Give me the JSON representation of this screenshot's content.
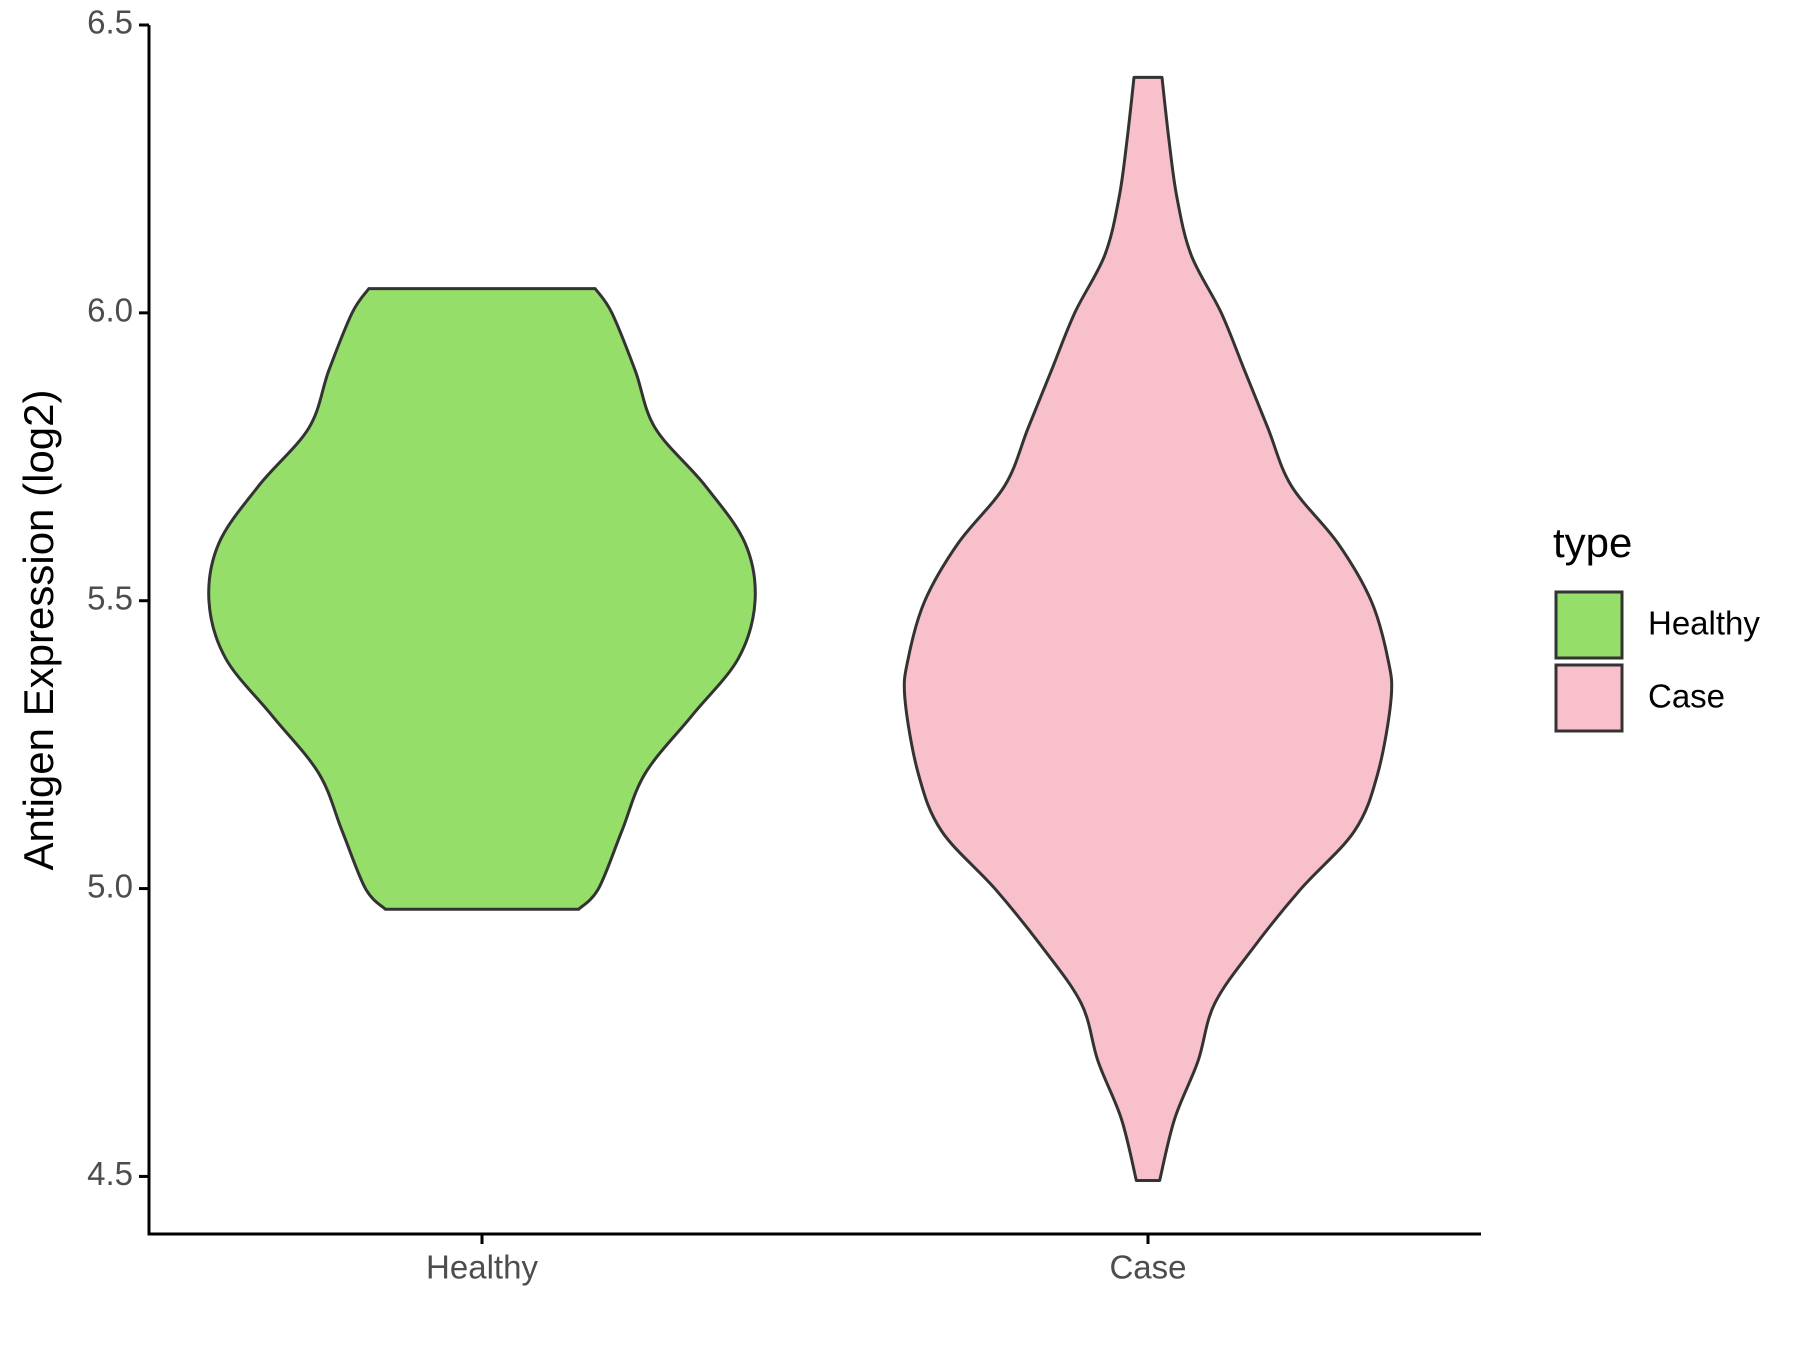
{
  "chart_data": {
    "type": "violin",
    "y_label": "Antigen Expression (log2)",
    "categories": [
      "Healthy",
      "Case"
    ],
    "legend_title": "type",
    "legend": "right",
    "ylim": [
      4.4,
      6.5
    ],
    "yticks": [
      4.5,
      {
        "value": 5.0,
        "label": "5.0"
      },
      5.5,
      {
        "value": 6.0,
        "label": "6.0"
      },
      6.5
    ],
    "outline": "#333333",
    "series": [
      {
        "name": "Healthy",
        "color": "#95DE6A",
        "y": [
          4.964,
          5.0,
          5.1,
          5.2,
          5.3,
          5.4,
          5.5,
          5.6,
          5.7,
          5.8,
          5.9,
          6.0,
          6.042
        ],
        "width": [
          0.29,
          0.35,
          0.42,
          0.49,
          0.63,
          0.77,
          0.82,
          0.79,
          0.67,
          0.52,
          0.46,
          0.39,
          0.34
        ]
      },
      {
        "name": "Case",
        "color": "#F7C0CB",
        "y": [
          4.493,
          4.6,
          4.7,
          4.8,
          4.9,
          5.0,
          5.1,
          5.2,
          5.33,
          5.4,
          5.5,
          5.6,
          5.7,
          5.8,
          5.9,
          6.0,
          6.1,
          6.2,
          6.3,
          6.409
        ],
        "width": [
          0.035,
          0.08,
          0.15,
          0.2,
          0.32,
          0.46,
          0.62,
          0.69,
          0.73,
          0.72,
          0.67,
          0.57,
          0.43,
          0.36,
          0.29,
          0.22,
          0.13,
          0.087,
          0.063,
          0.042
        ]
      }
    ]
  }
}
